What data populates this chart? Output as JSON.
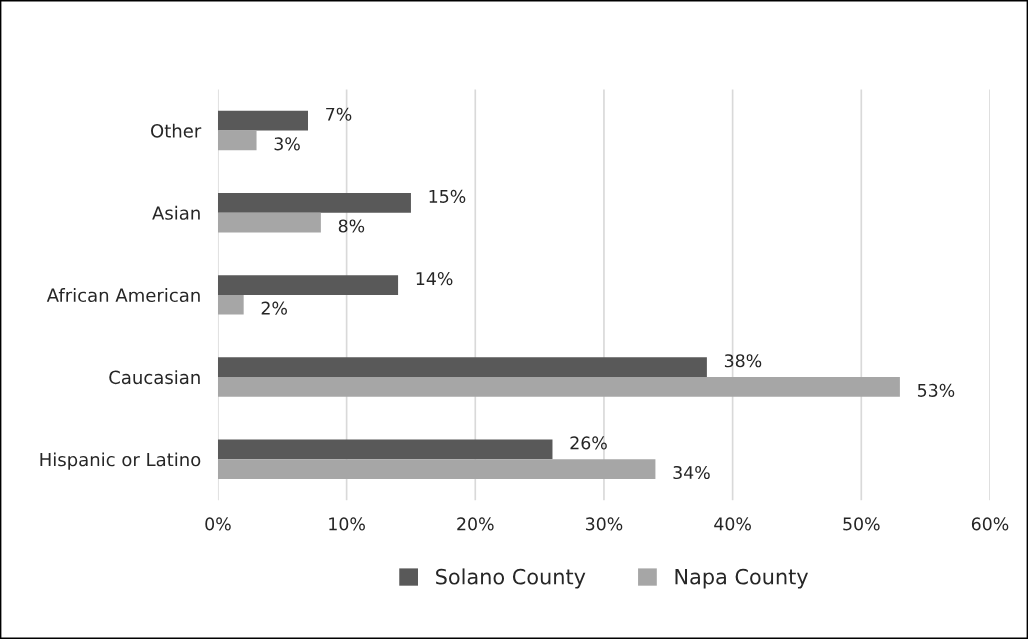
{
  "chart_data": {
    "type": "bar",
    "orientation": "horizontal",
    "categories": [
      "Other",
      "Asian",
      "African American",
      "Caucasian",
      "Hispanic or Latino"
    ],
    "series": [
      {
        "name": "Solano County",
        "color": "#595959",
        "values": [
          7,
          15,
          14,
          38,
          26
        ],
        "value_labels": [
          "7%",
          "15%",
          "14%",
          "38%",
          "26%"
        ]
      },
      {
        "name": "Napa County",
        "color": "#a6a6a6",
        "values": [
          3,
          8,
          2,
          53,
          34
        ],
        "value_labels": [
          "3%",
          "8%",
          "2%",
          "53%",
          "34%"
        ]
      }
    ],
    "xlim": [
      0,
      60
    ],
    "xticks": [
      {
        "value": 0,
        "label": "0%"
      },
      {
        "value": 10,
        "label": "10%"
      },
      {
        "value": 20,
        "label": "20%"
      },
      {
        "value": 30,
        "label": "30%"
      },
      {
        "value": 40,
        "label": "40%"
      },
      {
        "value": 50,
        "label": "50%"
      },
      {
        "value": 60,
        "label": "60%"
      }
    ],
    "grid": "x",
    "legend": "bottom"
  }
}
